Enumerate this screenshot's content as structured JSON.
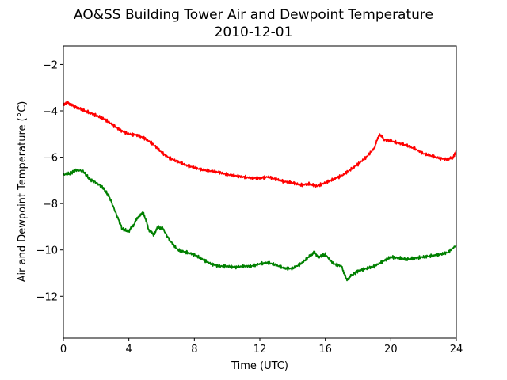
{
  "chart_data": {
    "type": "line",
    "title": "AO&SS Building Tower Air and Dewpoint Temperature",
    "subtitle": "2010-12-01",
    "xlabel": "Time (UTC)",
    "ylabel": "Air and Dewpoint Temperature (°C)",
    "xlim": [
      0,
      24
    ],
    "ylim": [
      -13.8,
      -1.2
    ],
    "xticks": [
      0,
      4,
      8,
      12,
      16,
      20,
      24
    ],
    "yticks": [
      -2,
      -4,
      -6,
      -8,
      -10,
      -12
    ],
    "grid": false,
    "series": [
      {
        "color": "#ff0000",
        "x": [
          0,
          0.3,
          0.6,
          1,
          1.5,
          2,
          2.5,
          3,
          3.5,
          4,
          4.5,
          5,
          5.5,
          6,
          6.5,
          7,
          7.5,
          8,
          8.5,
          9,
          9.5,
          10,
          10.5,
          11,
          11.5,
          12,
          12.5,
          13,
          13.5,
          14,
          14.5,
          15,
          15.5,
          16,
          16.5,
          17,
          17.5,
          18,
          18.5,
          19,
          19.3,
          19.6,
          20,
          20.5,
          21,
          21.5,
          22,
          22.5,
          23,
          23.5,
          23.8,
          24
        ],
        "y": [
          -3.7,
          -3.65,
          -3.8,
          -3.9,
          -4.05,
          -4.2,
          -4.35,
          -4.6,
          -4.85,
          -5.0,
          -5.05,
          -5.2,
          -5.45,
          -5.8,
          -6.05,
          -6.2,
          -6.35,
          -6.45,
          -6.55,
          -6.6,
          -6.65,
          -6.75,
          -6.8,
          -6.85,
          -6.9,
          -6.9,
          -6.85,
          -6.95,
          -7.05,
          -7.1,
          -7.2,
          -7.15,
          -7.25,
          -7.1,
          -6.95,
          -6.8,
          -6.55,
          -6.3,
          -6.0,
          -5.6,
          -5.0,
          -5.25,
          -5.3,
          -5.4,
          -5.5,
          -5.65,
          -5.85,
          -5.95,
          -6.05,
          -6.1,
          -6.0,
          -5.75
        ]
      },
      {
        "color": "#008000",
        "x": [
          0,
          0.4,
          0.8,
          1.2,
          1.6,
          2,
          2.4,
          2.8,
          3.2,
          3.6,
          4,
          4.3,
          4.6,
          4.9,
          5.2,
          5.5,
          5.8,
          6.1,
          6.5,
          7,
          7.5,
          8,
          8.5,
          9,
          9.5,
          10,
          10.5,
          11,
          11.5,
          12,
          12.5,
          13,
          13.5,
          14,
          14.5,
          15,
          15.3,
          15.6,
          16,
          16.5,
          17,
          17.3,
          17.6,
          18,
          18.5,
          19,
          19.5,
          20,
          20.5,
          21,
          21.5,
          22,
          22.5,
          23,
          23.5,
          24
        ],
        "y": [
          -6.75,
          -6.7,
          -6.55,
          -6.6,
          -6.95,
          -7.1,
          -7.3,
          -7.7,
          -8.4,
          -9.1,
          -9.2,
          -8.9,
          -8.55,
          -8.4,
          -9.1,
          -9.35,
          -9.0,
          -9.1,
          -9.6,
          -10.0,
          -10.1,
          -10.2,
          -10.4,
          -10.6,
          -10.7,
          -10.7,
          -10.75,
          -10.7,
          -10.7,
          -10.6,
          -10.55,
          -10.65,
          -10.8,
          -10.8,
          -10.6,
          -10.3,
          -10.1,
          -10.3,
          -10.2,
          -10.6,
          -10.7,
          -11.3,
          -11.1,
          -10.9,
          -10.8,
          -10.7,
          -10.5,
          -10.3,
          -10.35,
          -10.4,
          -10.35,
          -10.3,
          -10.25,
          -10.2,
          -10.1,
          -9.8
        ]
      }
    ]
  }
}
